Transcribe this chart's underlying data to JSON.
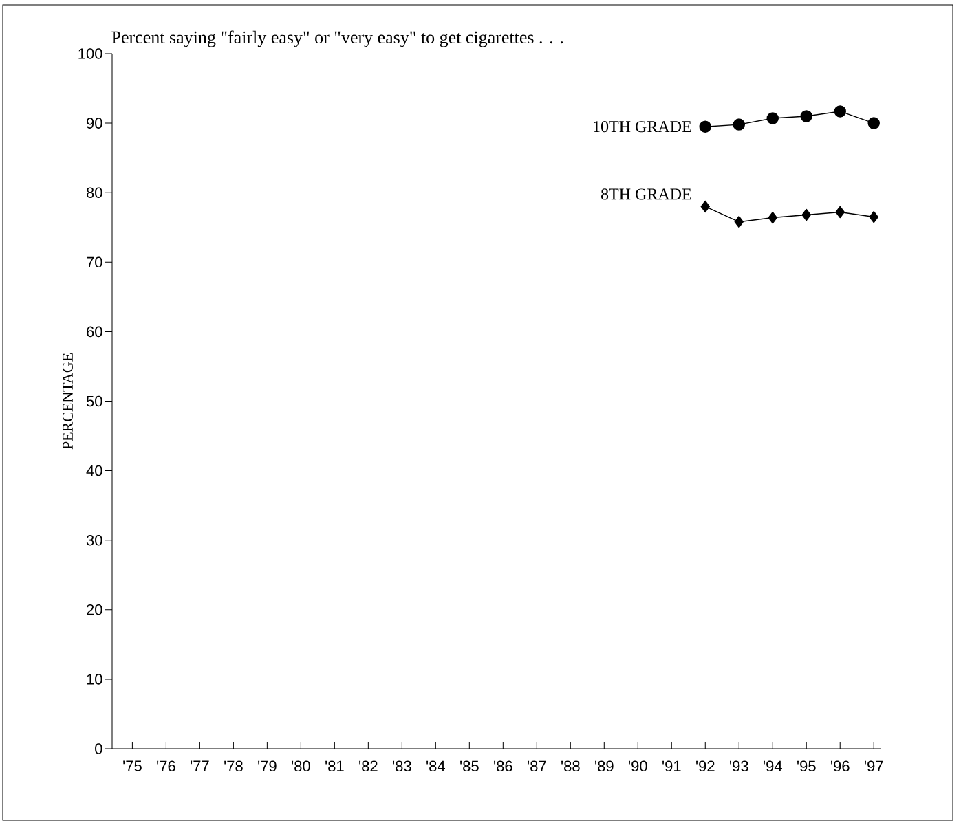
{
  "chart_data": {
    "type": "line",
    "title": "Percent saying \"fairly easy\" or \"very easy\" to get cigarettes . . .",
    "ylabel": "PERCENTAGE",
    "categories": [
      "'75",
      "'76",
      "'77",
      "'78",
      "'79",
      "'80",
      "'81",
      "'82",
      "'83",
      "'84",
      "'85",
      "'86",
      "'87",
      "'88",
      "'89",
      "'90",
      "'91",
      "'92",
      "'93",
      "'94",
      "'95",
      "'96",
      "'97"
    ],
    "series": [
      {
        "name": "10TH GRADE",
        "color": "#000000",
        "marker": "circle",
        "values": [
          null,
          null,
          null,
          null,
          null,
          null,
          null,
          null,
          null,
          null,
          null,
          null,
          null,
          null,
          null,
          null,
          null,
          89.5,
          89.8,
          90.7,
          91.0,
          91.7,
          90.0
        ]
      },
      {
        "name": "8TH GRADE",
        "color": "#000000",
        "marker": "diamond",
        "values": [
          null,
          null,
          null,
          null,
          null,
          null,
          null,
          null,
          null,
          null,
          null,
          null,
          null,
          null,
          null,
          null,
          null,
          78.0,
          75.8,
          76.4,
          76.8,
          77.2,
          76.5
        ]
      }
    ],
    "ylim": [
      0,
      100
    ],
    "yticks": [
      0,
      10,
      20,
      30,
      40,
      50,
      60,
      70,
      80,
      90,
      100
    ],
    "legend": false
  }
}
